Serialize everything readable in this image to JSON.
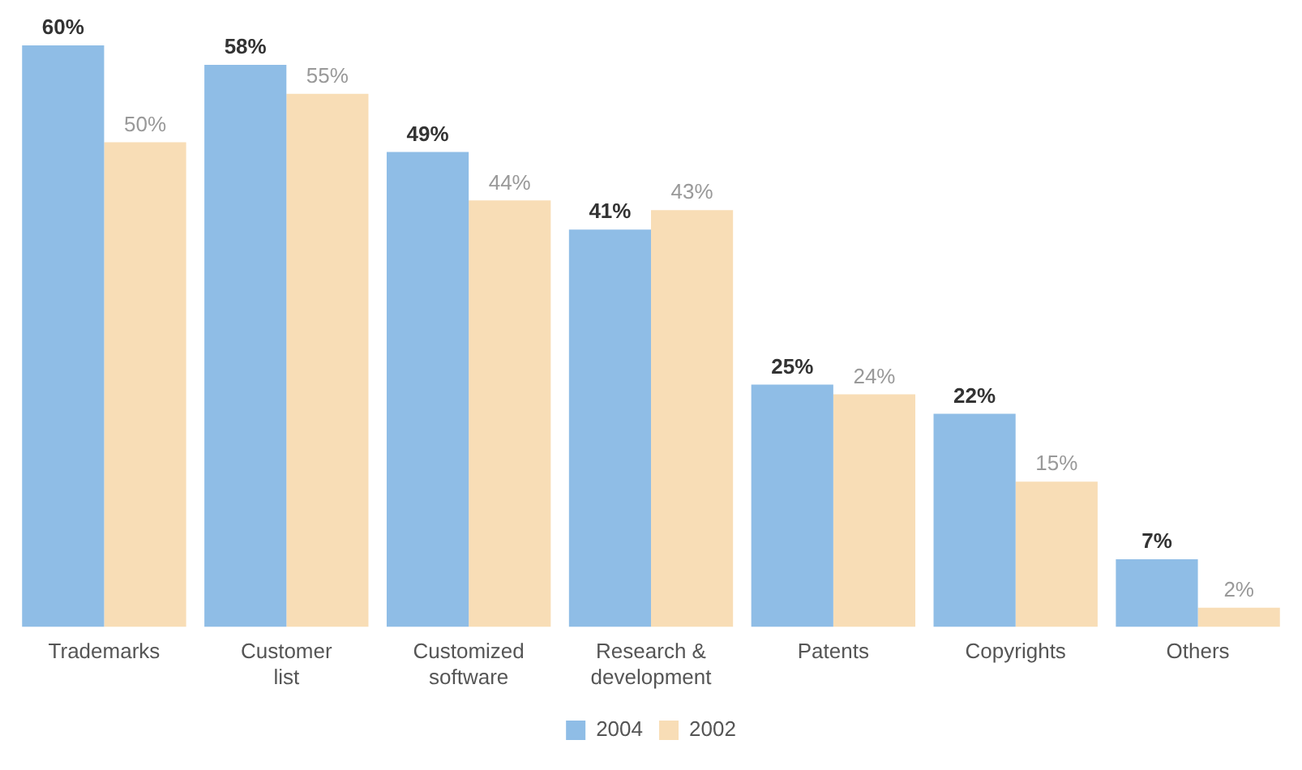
{
  "chart_data": {
    "type": "bar",
    "categories": [
      "Trademarks",
      "Customer list",
      "Customized software",
      "Research & development",
      "Patents",
      "Copyrights",
      "Others"
    ],
    "series": [
      {
        "name": "2004",
        "color": "#8fbde6",
        "values": [
          60,
          58,
          49,
          41,
          25,
          22,
          7
        ],
        "value_labels": [
          "60%",
          "58%",
          "49%",
          "41%",
          "25%",
          "22%",
          "7%"
        ]
      },
      {
        "name": "2002",
        "color": "#f8ddb6",
        "values": [
          50,
          55,
          44,
          43,
          24,
          15,
          2
        ],
        "value_labels": [
          "50%",
          "55%",
          "44%",
          "43%",
          "24%",
          "15%",
          "2%"
        ]
      }
    ],
    "grid": false,
    "legend": "bottom"
  }
}
